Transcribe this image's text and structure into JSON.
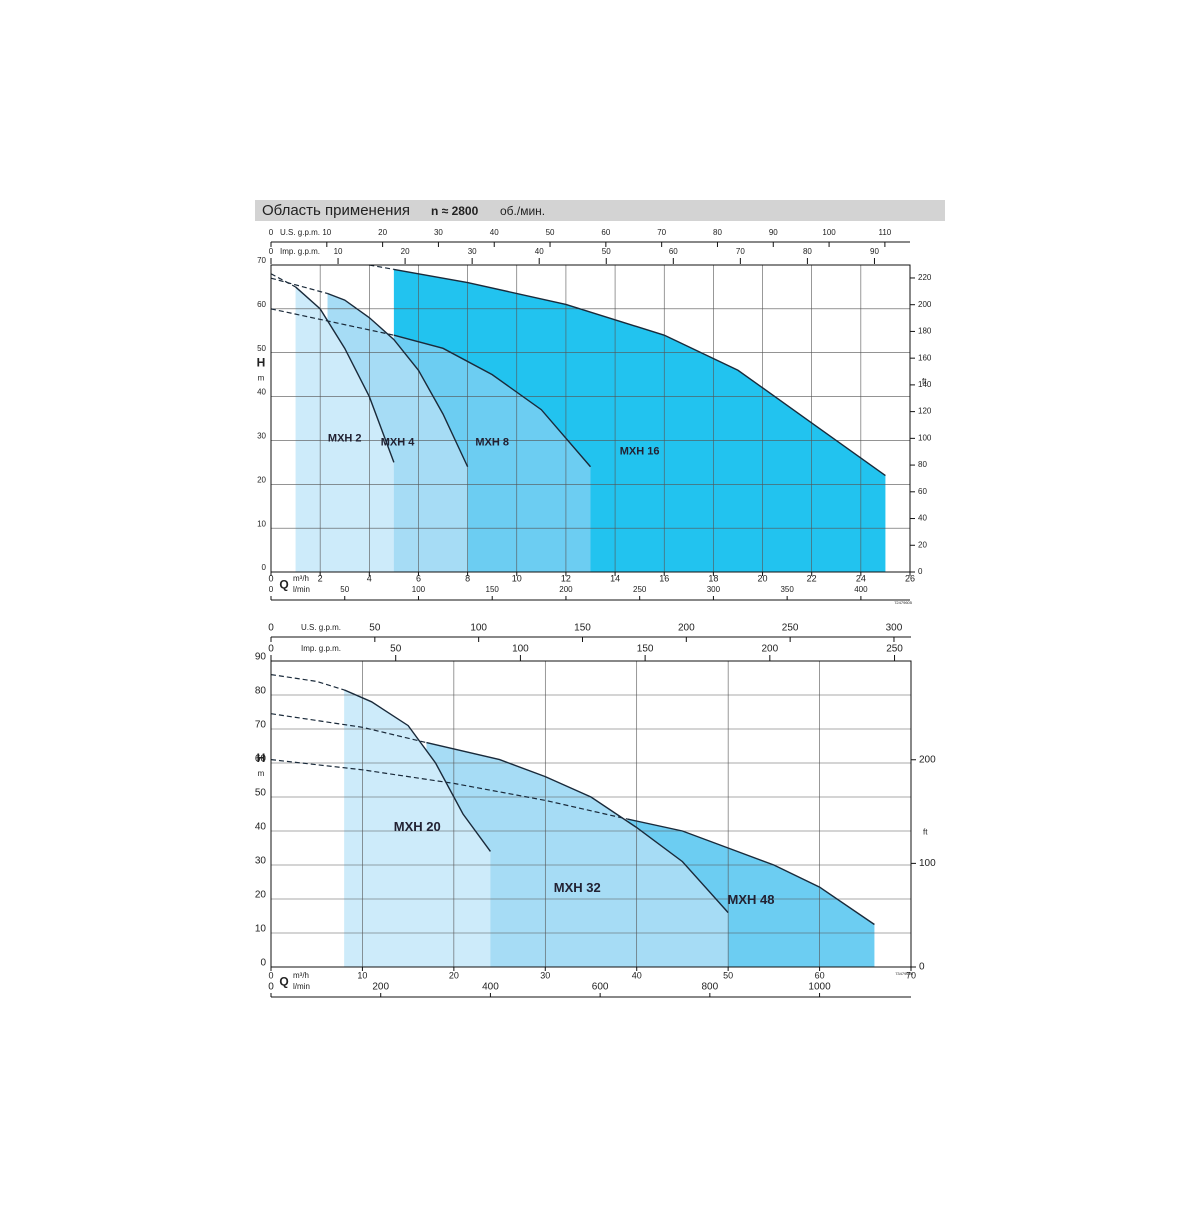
{
  "title": "Область применения",
  "subtitle": "n ≈ 2800",
  "subtitle_unit": "об./мин.",
  "chart_data": [
    {
      "type": "area",
      "xlabel": "Q",
      "xunit": "m³/h",
      "xlim": [
        0,
        26
      ],
      "xticks": [
        0,
        2,
        4,
        6,
        8,
        10,
        12,
        14,
        16,
        18,
        20,
        22,
        24,
        26
      ],
      "ylabel": "H",
      "yunit": "m",
      "ylim": [
        0,
        70
      ],
      "yticks": [
        0,
        10,
        20,
        30,
        40,
        50,
        60,
        70
      ],
      "y2label": "ft",
      "y2lim": [
        0,
        229.7
      ],
      "y2ticks": [
        0,
        20,
        40,
        60,
        80,
        100,
        120,
        140,
        160,
        180,
        200,
        220
      ],
      "grid": true,
      "axes": [
        {
          "position": "top",
          "label": "U.S. g.p.m.",
          "lim": [
            0,
            114.5
          ],
          "ticks": [
            0,
            10,
            20,
            30,
            40,
            50,
            60,
            70,
            80,
            90,
            100,
            110
          ]
        },
        {
          "position": "top2",
          "label": "Imp. g.p.m.",
          "lim": [
            0,
            95.3
          ],
          "ticks": [
            0,
            10,
            20,
            30,
            40,
            50,
            60,
            70,
            80,
            90
          ]
        },
        {
          "position": "bottom2",
          "label": "l/min",
          "lim": [
            0,
            433.3
          ],
          "ticks": [
            0,
            50,
            100,
            150,
            200,
            250,
            300,
            350,
            400
          ]
        }
      ],
      "series": [
        {
          "name": "MXH 2",
          "color": "#cdebfa",
          "lead_x": [
            0,
            1
          ],
          "lead_values": [
            68,
            65
          ],
          "x": [
            1,
            2,
            3,
            4,
            4.6,
            5
          ],
          "values": [
            65,
            60,
            51,
            40,
            31,
            25
          ]
        },
        {
          "name": "MXH 4",
          "color": "#a6dcf5",
          "lead_x": [
            0,
            2.3
          ],
          "lead_values": [
            67,
            63.5
          ],
          "x": [
            2.3,
            3,
            4,
            5,
            6,
            7,
            8
          ],
          "values": [
            63.5,
            62,
            58,
            53,
            46,
            36,
            24
          ]
        },
        {
          "name": "MXH 8",
          "color": "#6ccdf2",
          "lead_x": [
            0,
            5
          ],
          "lead_values": [
            60,
            54
          ],
          "x": [
            5,
            7,
            9,
            11,
            13
          ],
          "values": [
            54,
            51,
            45,
            37,
            24
          ]
        },
        {
          "name": "MXH 16",
          "color": "#22c3ef",
          "lead_x": [
            4,
            5
          ],
          "lead_values": [
            70,
            69
          ],
          "x": [
            5,
            8,
            12,
            16,
            19,
            22,
            25
          ],
          "values": [
            69,
            66,
            61,
            54,
            46,
            34,
            22
          ]
        }
      ],
      "code": "72479605"
    },
    {
      "type": "area",
      "xlabel": "Q",
      "xunit": "m³/h",
      "xlim": [
        0,
        70
      ],
      "xticks": [
        0,
        10,
        20,
        30,
        40,
        50,
        60,
        70
      ],
      "ylabel": "H",
      "yunit": "m",
      "ylim": [
        0,
        90
      ],
      "yticks": [
        0,
        10,
        20,
        30,
        40,
        50,
        60,
        70,
        80,
        90
      ],
      "y2label": "ft",
      "y2lim": [
        0,
        295.3
      ],
      "y2ticks": [
        0,
        100,
        200
      ],
      "grid": true,
      "axes": [
        {
          "position": "top",
          "label": "U.S. g.p.m.",
          "lim": [
            0,
            308.2
          ],
          "ticks": [
            0,
            50,
            100,
            150,
            200,
            250,
            300
          ]
        },
        {
          "position": "top2",
          "label": "Imp. g.p.m.",
          "lim": [
            0,
            256.6
          ],
          "ticks": [
            0,
            50,
            100,
            150,
            200,
            250
          ]
        },
        {
          "position": "bottom2",
          "label": "l/min",
          "lim": [
            0,
            1166.7
          ],
          "ticks": [
            0,
            200,
            400,
            600,
            800,
            1000
          ]
        }
      ],
      "series": [
        {
          "name": "MXH 20",
          "color": "#cdebfa",
          "lead_x": [
            0,
            5,
            8
          ],
          "lead_values": [
            86,
            84,
            81.5
          ],
          "x": [
            8,
            11,
            15,
            18,
            21,
            24
          ],
          "values": [
            81.5,
            78,
            71,
            60,
            45,
            34
          ]
        },
        {
          "name": "MXH 32",
          "color": "#a6dcf5",
          "lead_x": [
            0,
            10,
            17
          ],
          "lead_values": [
            74.5,
            70.5,
            66
          ],
          "x": [
            17,
            25,
            30,
            35,
            40,
            45,
            50
          ],
          "values": [
            66,
            61,
            56,
            50,
            41,
            31,
            16
          ]
        },
        {
          "name": "MXH 48",
          "color": "#6ccdf2",
          "lead_x": [
            0,
            10,
            20,
            30,
            39
          ],
          "lead_values": [
            61,
            58,
            54,
            49,
            43.5
          ],
          "x": [
            39,
            45,
            50,
            55,
            60,
            66
          ],
          "values": [
            43.5,
            40,
            35,
            30,
            23.5,
            12.5
          ]
        }
      ],
      "code": "73479606"
    }
  ]
}
